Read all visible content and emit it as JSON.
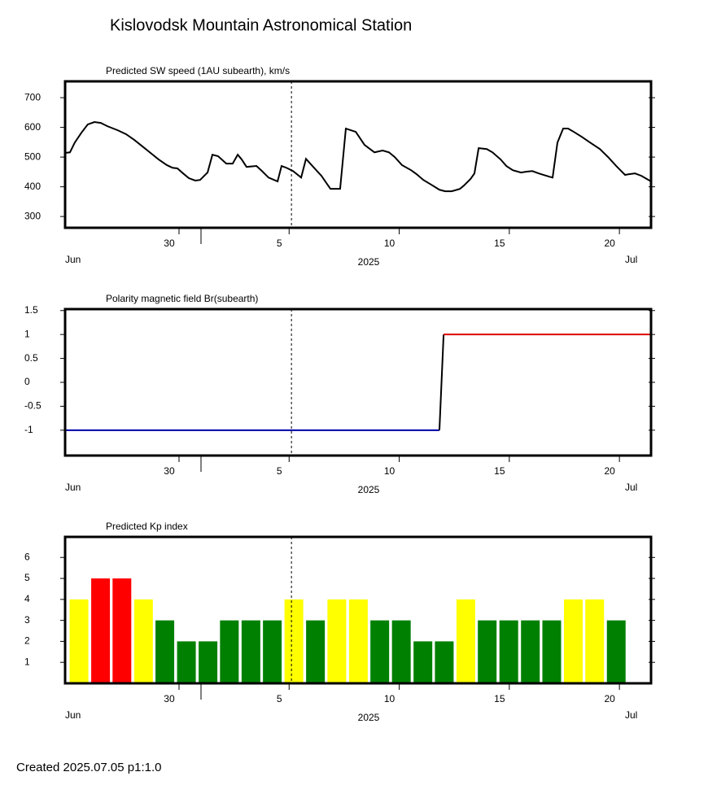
{
  "title": "Kislovodsk Mountain Astronomical Station",
  "footer": "Created  2025.07.05    p1:1.0",
  "current_time": 5.55,
  "chart_data": [
    {
      "type": "line",
      "title": "Predicted SW speed (1AU subearth), km/s",
      "color": "#000000",
      "x": [
        -4.73,
        -4.51,
        -4.29,
        -3.99,
        -3.7,
        -3.4,
        -3.11,
        -2.81,
        -2.33,
        -1.96,
        -1.59,
        -1.22,
        -0.85,
        -0.48,
        -0.11,
        0.15,
        0.37,
        0.63,
        0.89,
        1.18,
        1.4,
        1.74,
        1.96,
        2.22,
        2.59,
        2.88,
        3.11,
        3.29,
        3.51,
        3.96,
        4.21,
        4.51,
        4.92,
        5.1,
        5.32,
        5.62,
        5.99,
        6.21,
        6.54,
        6.91,
        7.32,
        7.76,
        8.02,
        8.47,
        8.87,
        9.32,
        9.69,
        9.98,
        10.24,
        10.57,
        10.98,
        11.24,
        11.54,
        11.9,
        12.27,
        12.53,
        12.83,
        13.2,
        13.38,
        13.68,
        13.86,
        14.05,
        14.42,
        14.68,
        15.05,
        15.31,
        15.6,
        15.97,
        16.23,
        16.49,
        16.78,
        17.26,
        17.41,
        17.63,
        17.89,
        18.11,
        18.37,
        18.74,
        19.11,
        19.56,
        19.93,
        20.3,
        20.7,
        20.85,
        21.15,
        21.44,
        21.88
      ],
      "values": [
        514,
        516,
        549,
        582,
        610,
        618,
        615,
        604,
        590,
        577,
        558,
        536,
        514,
        492,
        473,
        464,
        462,
        445,
        429,
        421,
        423,
        448,
        508,
        503,
        478,
        478,
        508,
        492,
        467,
        470,
        453,
        431,
        418,
        470,
        464,
        453,
        431,
        494,
        467,
        437,
        393,
        393,
        596,
        585,
        541,
        516,
        522,
        516,
        500,
        473,
        456,
        442,
        423,
        407,
        390,
        385,
        385,
        393,
        404,
        426,
        445,
        530,
        527,
        516,
        492,
        470,
        456,
        448,
        451,
        453,
        445,
        434,
        431,
        549,
        596,
        596,
        585,
        568,
        549,
        527,
        500,
        470,
        440,
        442,
        445,
        437,
        418
      ],
      "xlim": [
        -4.73,
        21.88
      ],
      "ylim": [
        262,
        755
      ],
      "yticks": [
        300,
        400,
        500,
        600,
        700
      ],
      "xticks": [
        {
          "value": 0,
          "label": "30"
        },
        5,
        10,
        15,
        20
      ],
      "month_labels": [
        "Jun",
        "Jul"
      ],
      "year_label": "2025"
    },
    {
      "type": "step",
      "title": "Polarity magnetic field  Br(subearth)",
      "x": [
        -4.73,
        12.27,
        12.46,
        21.88
      ],
      "values": [
        -1,
        -1,
        1,
        1
      ],
      "negative_color": "#0000aa",
      "positive_color": "#dd0000",
      "transition_color": "#000000",
      "xlim": [
        -4.73,
        21.88
      ],
      "ylim": [
        -1.53,
        1.53
      ],
      "yticks": [
        -1,
        -0.5,
        0,
        0.5,
        1,
        1.5
      ],
      "xticks": [
        {
          "value": 0,
          "label": "30"
        },
        5,
        10,
        15,
        20
      ],
      "month_labels": [
        "Jun",
        "Jul"
      ],
      "year_label": "2025"
    },
    {
      "type": "bar",
      "title": "Predicted Kp index",
      "x": [
        -4.1,
        -3.12,
        -2.15,
        -1.17,
        -0.2,
        0.78,
        1.76,
        2.73,
        3.71,
        4.68,
        5.66,
        6.64,
        7.61,
        8.59,
        9.56,
        10.54,
        11.52,
        12.49,
        13.47,
        14.44,
        15.42,
        16.4,
        17.37,
        18.35,
        19.32,
        20.3
      ],
      "values": [
        4,
        5,
        5,
        4,
        3,
        2,
        2,
        3,
        3,
        3,
        4,
        3,
        4,
        4,
        3,
        3,
        2,
        2,
        4,
        3,
        3,
        3,
        3,
        4,
        4,
        3
      ],
      "bar_colors": [
        "#ffff00",
        "#ff0000",
        "#ff0000",
        "#ffff00",
        "#008000",
        "#008000",
        "#008000",
        "#008000",
        "#008000",
        "#008000",
        "#ffff00",
        "#008000",
        "#ffff00",
        "#ffff00",
        "#008000",
        "#008000",
        "#008000",
        "#008000",
        "#ffff00",
        "#008000",
        "#008000",
        "#008000",
        "#008000",
        "#ffff00",
        "#ffff00",
        "#008000"
      ],
      "xlim": [
        -4.73,
        21.88
      ],
      "ylim": [
        0,
        6.98
      ],
      "yticks": [
        1,
        2,
        3,
        4,
        5,
        6
      ],
      "xticks": [
        {
          "value": 0,
          "label": "30"
        },
        5,
        10,
        15,
        20
      ],
      "month_labels": [
        "Jun",
        "Jul"
      ],
      "year_label": "2025"
    }
  ]
}
